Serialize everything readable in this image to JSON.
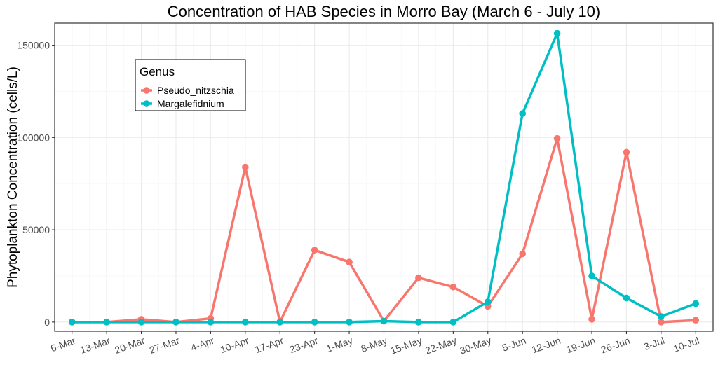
{
  "chart_data": {
    "type": "line",
    "title": "Concentration of HAB Species in Morro Bay (March 6 - July 10)",
    "xlabel": "",
    "ylabel": "Phytoplankton Concentration (cells/L)",
    "categories": [
      "6-Mar",
      "13-Mar",
      "20-Mar",
      "27-Mar",
      "4-Apr",
      "10-Apr",
      "17-Apr",
      "23-Apr",
      "1-May",
      "8-May",
      "15-May",
      "22-May",
      "30-May",
      "5-Jun",
      "12-Jun",
      "19-Jun",
      "26-Jun",
      "3-Jul",
      "10-Jul"
    ],
    "ylim": [
      -5000,
      162000
    ],
    "yticks": [
      0,
      50000,
      100000,
      150000
    ],
    "ytick_labels": [
      "0",
      "50000",
      "100000",
      "150000"
    ],
    "grid": true,
    "legend": {
      "title": "Genus",
      "placement": "top-left"
    },
    "series": [
      {
        "name": "Pseudo_nitzschia",
        "color": "#F8766D",
        "values": [
          0,
          0,
          1500,
          0,
          2000,
          84000,
          0,
          39000,
          32500,
          500,
          24000,
          19000,
          8500,
          37000,
          99500,
          1500,
          92000,
          0,
          1000
        ]
      },
      {
        "name": "Margalefidnium",
        "color": "#00BFC4",
        "values": [
          0,
          0,
          0,
          0,
          0,
          0,
          0,
          0,
          0,
          500,
          0,
          0,
          11000,
          113000,
          156500,
          25000,
          13000,
          3000,
          10000
        ]
      }
    ]
  }
}
